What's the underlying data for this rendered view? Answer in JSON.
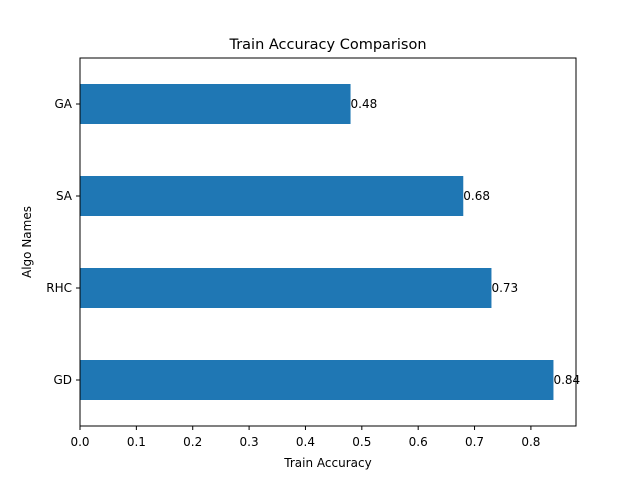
{
  "chart_data": {
    "type": "bar",
    "orientation": "horizontal",
    "title": "Train Accuracy Comparison",
    "xlabel": "Train Accuracy",
    "ylabel": "Algo Names",
    "categories": [
      "GD",
      "RHC",
      "SA",
      "GA"
    ],
    "values": [
      0.84,
      0.73,
      0.68,
      0.48
    ],
    "value_labels": [
      "0.84",
      "0.73",
      "0.68",
      "0.48"
    ],
    "xlim": [
      0,
      0.88
    ],
    "xticks": [
      0,
      0.1,
      0.2,
      0.3,
      0.4,
      0.5,
      0.6,
      0.7,
      0.8
    ],
    "xtick_labels": [
      "0.0",
      "0.1",
      "0.2",
      "0.3",
      "0.4",
      "0.5",
      "0.6",
      "0.7",
      "0.8"
    ],
    "grid": false,
    "legend": "none",
    "bar_color": "#1f77b4"
  }
}
